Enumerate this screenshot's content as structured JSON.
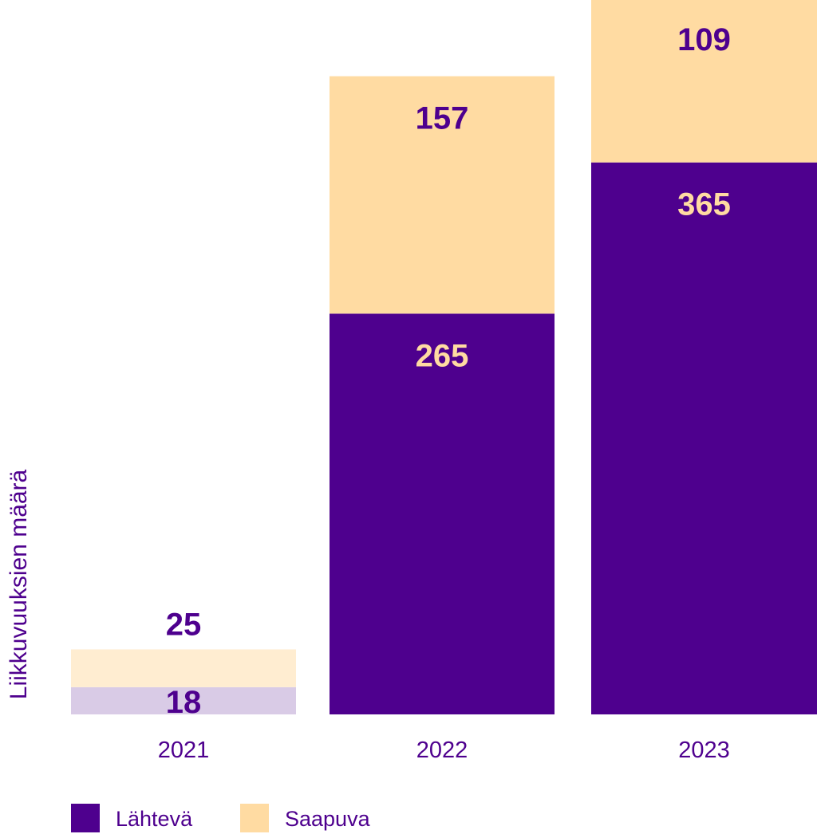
{
  "chart_data": {
    "type": "bar",
    "stacked": true,
    "ylabel": "Liikkuvuuksien määrä",
    "xlabel": "",
    "categories": [
      "2021",
      "2022",
      "2023"
    ],
    "series": [
      {
        "name": "Lähtevä",
        "values": [
          18,
          265,
          365
        ],
        "color": "#4e008e",
        "label_color": "#ffdba2",
        "faded_color": "#d9cbe6",
        "faded_label_color": "#4e008e"
      },
      {
        "name": "Saapuva",
        "values": [
          25,
          157,
          109
        ],
        "color": "#ffdba2",
        "label_color": "#4e008e",
        "faded_color": "#ffedd1",
        "faded_label_color": "#4e008e"
      }
    ],
    "highlighted_categories": [
      "2022",
      "2023"
    ],
    "legend_position": "bottom-left",
    "grid": false
  }
}
